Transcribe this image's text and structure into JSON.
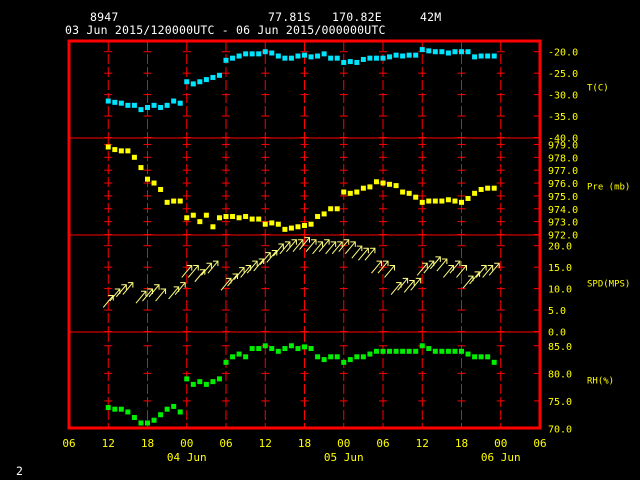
{
  "header": {
    "station": "8947",
    "lat": "77.81S",
    "lon": "170.82E",
    "elev": "42M",
    "period": "03 Jun 2015/120000UTC - 06 Jun 2015/000000UTC",
    "page": "2"
  },
  "colors": {
    "frame": "#ff0000",
    "grid": "#ff0000",
    "labels": "#ffff00",
    "temp": "#00e5ff",
    "pres": "#ffff00",
    "wind": "#ffff80",
    "rh": "#00ee00"
  },
  "chart_data": {
    "type": "scatter",
    "x_unit": "hours since 03 Jun 2015 06UTC",
    "xlim": [
      0,
      72
    ],
    "x_ticks": [
      {
        "v": 0,
        "t": "06"
      },
      {
        "v": 6,
        "t": "12"
      },
      {
        "v": 12,
        "t": "18"
      },
      {
        "v": 18,
        "t": "00"
      },
      {
        "v": 24,
        "t": "06"
      },
      {
        "v": 30,
        "t": "12"
      },
      {
        "v": 36,
        "t": "18"
      },
      {
        "v": 42,
        "t": "00"
      },
      {
        "v": 48,
        "t": "06"
      },
      {
        "v": 54,
        "t": "12"
      },
      {
        "v": 60,
        "t": "18"
      },
      {
        "v": 66,
        "t": "00"
      },
      {
        "v": 72,
        "t": "06"
      }
    ],
    "date_labels": [
      {
        "v": 18,
        "t": "04 Jun"
      },
      {
        "v": 42,
        "t": "05 Jun"
      },
      {
        "v": 66,
        "t": "06 Jun"
      }
    ],
    "panels": [
      {
        "name": "T(C)",
        "ylim": [
          -40,
          -17.5
        ],
        "ticks": [
          -20,
          -25,
          -30,
          -35,
          -40
        ],
        "tick_labels": [
          "-20.0",
          "-25.0",
          "-30.0",
          "-35.0",
          "-40.0"
        ],
        "points": [
          [
            6,
            -31.5
          ],
          [
            7,
            -31.8
          ],
          [
            8,
            -32
          ],
          [
            9,
            -32.5
          ],
          [
            10,
            -32.5
          ],
          [
            11,
            -33.5
          ],
          [
            12,
            -33
          ],
          [
            13,
            -32.5
          ],
          [
            14,
            -33
          ],
          [
            15,
            -32.5
          ],
          [
            16,
            -31.5
          ],
          [
            17,
            -32
          ],
          [
            18,
            -27
          ],
          [
            19,
            -27.5
          ],
          [
            20,
            -27
          ],
          [
            21,
            -26.5
          ],
          [
            22,
            -26
          ],
          [
            23,
            -25.5
          ],
          [
            24,
            -22
          ],
          [
            25,
            -21.5
          ],
          [
            26,
            -21
          ],
          [
            27,
            -20.5
          ],
          [
            28,
            -20.5
          ],
          [
            29,
            -20.5
          ],
          [
            30,
            -20
          ],
          [
            31,
            -20.3
          ],
          [
            32,
            -21
          ],
          [
            33,
            -21.5
          ],
          [
            34,
            -21.5
          ],
          [
            35,
            -21
          ],
          [
            36,
            -20.8
          ],
          [
            37,
            -21.2
          ],
          [
            38,
            -21
          ],
          [
            39,
            -20.5
          ],
          [
            40,
            -21.5
          ],
          [
            41,
            -21.5
          ],
          [
            42,
            -22.5
          ],
          [
            43,
            -22.3
          ],
          [
            44,
            -22.5
          ],
          [
            45,
            -21.8
          ],
          [
            46,
            -21.5
          ],
          [
            47,
            -21.5
          ],
          [
            48,
            -21.5
          ],
          [
            49,
            -21.2
          ],
          [
            50,
            -20.8
          ],
          [
            51,
            -21
          ],
          [
            52,
            -20.8
          ],
          [
            53,
            -20.8
          ],
          [
            54,
            -19.5
          ],
          [
            55,
            -19.8
          ],
          [
            56,
            -20
          ],
          [
            57,
            -20
          ],
          [
            58,
            -20.3
          ],
          [
            59,
            -20
          ],
          [
            60,
            -20
          ],
          [
            61,
            -20
          ],
          [
            62,
            -21.2
          ],
          [
            63,
            -21
          ],
          [
            64,
            -21
          ],
          [
            65,
            -21
          ]
        ]
      },
      {
        "name": "Pre (mb)",
        "ylim": [
          972,
          979.5
        ],
        "ticks": [
          979,
          978,
          977,
          976,
          975,
          974,
          973,
          972
        ],
        "tick_labels": [
          "979.0",
          "978.0",
          "977.0",
          "976.0",
          "975.0",
          "974.0",
          "973.0",
          "972.0"
        ],
        "points": [
          [
            6,
            978.8
          ],
          [
            7,
            978.6
          ],
          [
            8,
            978.5
          ],
          [
            9,
            978.5
          ],
          [
            10,
            978
          ],
          [
            11,
            977.2
          ],
          [
            12,
            976.3
          ],
          [
            13,
            976
          ],
          [
            14,
            975.5
          ],
          [
            15,
            974.5
          ],
          [
            16,
            974.6
          ],
          [
            17,
            974.6
          ],
          [
            18,
            973.3
          ],
          [
            19,
            973.5
          ],
          [
            20,
            973
          ],
          [
            21,
            973.5
          ],
          [
            22,
            972.6
          ],
          [
            23,
            973.3
          ],
          [
            24,
            973.4
          ],
          [
            25,
            973.4
          ],
          [
            26,
            973.3
          ],
          [
            27,
            973.4
          ],
          [
            28,
            973.2
          ],
          [
            29,
            973.2
          ],
          [
            30,
            972.8
          ],
          [
            31,
            972.9
          ],
          [
            32,
            972.8
          ],
          [
            33,
            972.4
          ],
          [
            34,
            972.5
          ],
          [
            35,
            972.6
          ],
          [
            36,
            972.7
          ],
          [
            37,
            972.8
          ],
          [
            38,
            973.4
          ],
          [
            39,
            973.6
          ],
          [
            40,
            974
          ],
          [
            41,
            974
          ],
          [
            42,
            975.3
          ],
          [
            43,
            975.2
          ],
          [
            44,
            975.3
          ],
          [
            45,
            975.6
          ],
          [
            46,
            975.7
          ],
          [
            47,
            976.1
          ],
          [
            48,
            976
          ],
          [
            49,
            975.9
          ],
          [
            50,
            975.8
          ],
          [
            51,
            975.3
          ],
          [
            52,
            975.2
          ],
          [
            53,
            974.9
          ],
          [
            54,
            974.5
          ],
          [
            55,
            974.6
          ],
          [
            56,
            974.6
          ],
          [
            57,
            974.6
          ],
          [
            58,
            974.7
          ],
          [
            59,
            974.6
          ],
          [
            60,
            974.5
          ],
          [
            61,
            974.8
          ],
          [
            62,
            975.2
          ],
          [
            63,
            975.5
          ],
          [
            64,
            975.6
          ],
          [
            65,
            975.6
          ]
        ]
      },
      {
        "name": "SPD(MPS)",
        "ylim": [
          0,
          22.5
        ],
        "ticks": [
          20,
          15,
          10,
          5,
          0
        ],
        "tick_labels": [
          "20.0",
          "15.0",
          "10.0",
          "5.0",
          "0.0"
        ],
        "barbs": [
          [
            6,
            7
          ],
          [
            7,
            8.5
          ],
          [
            8,
            9.5
          ],
          [
            9,
            10
          ],
          [
            11,
            8
          ],
          [
            12,
            8.5
          ],
          [
            13,
            9.5
          ],
          [
            14,
            8.5
          ],
          [
            16,
            9
          ],
          [
            17,
            10
          ],
          [
            18,
            14
          ],
          [
            19,
            14
          ],
          [
            20,
            13
          ],
          [
            21,
            14.5
          ],
          [
            22,
            15
          ],
          [
            24,
            11
          ],
          [
            25,
            12
          ],
          [
            26,
            13.5
          ],
          [
            27,
            14
          ],
          [
            28,
            15
          ],
          [
            29,
            15.5
          ],
          [
            30,
            17
          ],
          [
            31,
            17.5
          ],
          [
            32,
            19
          ],
          [
            33,
            19.5
          ],
          [
            34,
            20
          ],
          [
            35,
            20
          ],
          [
            36,
            20.5
          ],
          [
            37,
            20
          ],
          [
            38,
            19.5
          ],
          [
            39,
            20
          ],
          [
            40,
            19.5
          ],
          [
            41,
            19.5
          ],
          [
            42,
            20
          ],
          [
            43,
            19.5
          ],
          [
            44,
            18.5
          ],
          [
            45,
            18
          ],
          [
            46,
            18
          ],
          [
            47,
            15
          ],
          [
            48,
            15
          ],
          [
            49,
            14
          ],
          [
            50,
            10
          ],
          [
            51,
            11
          ],
          [
            52,
            10.5
          ],
          [
            53,
            11
          ],
          [
            54,
            14.5
          ],
          [
            55,
            15
          ],
          [
            56,
            16
          ],
          [
            57,
            15.5
          ],
          [
            58,
            14
          ],
          [
            59,
            15
          ],
          [
            60,
            14
          ],
          [
            61,
            11.5
          ],
          [
            62,
            12.5
          ],
          [
            63,
            14
          ],
          [
            64,
            14
          ],
          [
            65,
            14.5
          ]
        ]
      },
      {
        "name": "RH(%)",
        "ylim": [
          70,
          87.5
        ],
        "ticks": [
          85,
          80,
          75,
          70
        ],
        "tick_labels": [
          "85.0",
          "80.0",
          "75.0",
          "70.0"
        ],
        "points": [
          [
            6,
            73.8
          ],
          [
            7,
            73.5
          ],
          [
            8,
            73.5
          ],
          [
            9,
            73
          ],
          [
            10,
            72
          ],
          [
            11,
            71
          ],
          [
            12,
            71
          ],
          [
            13,
            71.5
          ],
          [
            14,
            72.5
          ],
          [
            15,
            73.5
          ],
          [
            16,
            74
          ],
          [
            17,
            73
          ],
          [
            18,
            79
          ],
          [
            19,
            78
          ],
          [
            20,
            78.5
          ],
          [
            21,
            78
          ],
          [
            22,
            78.5
          ],
          [
            23,
            79
          ],
          [
            24,
            82
          ],
          [
            25,
            83
          ],
          [
            26,
            83.5
          ],
          [
            27,
            83
          ],
          [
            28,
            84.5
          ],
          [
            29,
            84.5
          ],
          [
            30,
            85
          ],
          [
            31,
            84.5
          ],
          [
            32,
            84
          ],
          [
            33,
            84.5
          ],
          [
            34,
            85
          ],
          [
            35,
            84.5
          ],
          [
            36,
            84.8
          ],
          [
            37,
            84.5
          ],
          [
            38,
            83
          ],
          [
            39,
            82.5
          ],
          [
            40,
            83
          ],
          [
            41,
            83
          ],
          [
            42,
            82
          ],
          [
            43,
            82.5
          ],
          [
            44,
            83
          ],
          [
            45,
            83
          ],
          [
            46,
            83.5
          ],
          [
            47,
            84
          ],
          [
            48,
            84
          ],
          [
            49,
            84
          ],
          [
            50,
            84
          ],
          [
            51,
            84
          ],
          [
            52,
            84
          ],
          [
            53,
            84
          ],
          [
            54,
            85
          ],
          [
            55,
            84.5
          ],
          [
            56,
            84
          ],
          [
            57,
            84
          ],
          [
            58,
            84
          ],
          [
            59,
            84
          ],
          [
            60,
            84
          ],
          [
            61,
            83.5
          ],
          [
            62,
            83
          ],
          [
            63,
            83
          ],
          [
            64,
            83
          ],
          [
            65,
            82
          ]
        ]
      }
    ]
  }
}
